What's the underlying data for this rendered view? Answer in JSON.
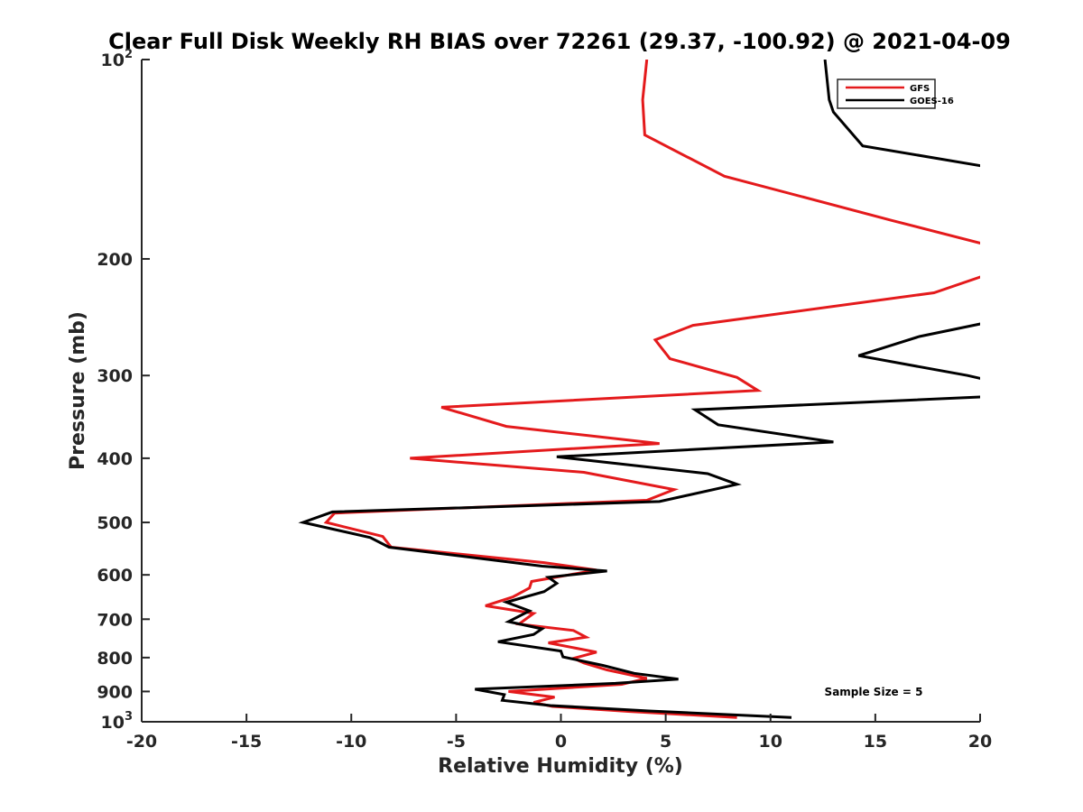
{
  "chart_data": {
    "type": "line",
    "title": "Clear Full Disk Weekly RH BIAS over 72261 (29.37, -100.92) @ 2021-04-09",
    "xlabel": "Relative Humidity (%)",
    "ylabel": "Pressure (mb)",
    "xlim": [
      -20,
      20
    ],
    "ylim": [
      100,
      1000
    ],
    "y_scale": "log",
    "y_reversed": true,
    "x_ticks": [
      "-20",
      "-15",
      "-10",
      "-5",
      "0",
      "5",
      "10",
      "15",
      "20"
    ],
    "y_ticks": [
      {
        "value": 100,
        "base": "10",
        "exp": "2"
      },
      {
        "value": 200,
        "label": "200"
      },
      {
        "value": 300,
        "label": "300"
      },
      {
        "value": 400,
        "label": "400"
      },
      {
        "value": 500,
        "label": "500"
      },
      {
        "value": 600,
        "label": "600"
      },
      {
        "value": 700,
        "label": "700"
      },
      {
        "value": 800,
        "label": "800"
      },
      {
        "value": 900,
        "label": "900"
      },
      {
        "value": 1000,
        "base": "10",
        "exp": "3"
      }
    ],
    "grid": false,
    "legend": {
      "placement": "top-right",
      "entries": [
        "GFS",
        "GOES-16"
      ]
    },
    "annotation": "Sample Size = 5",
    "series": [
      {
        "name": "GFS",
        "color": "#e41a1c",
        "points": [
          [
            4.1,
            100
          ],
          [
            3.9,
            115
          ],
          [
            4.0,
            130
          ],
          [
            7.8,
            150
          ],
          [
            15.8,
            175
          ],
          [
            20.2,
            190
          ],
          [
            20.2,
            212
          ],
          [
            17.8,
            225
          ],
          [
            6.3,
            252
          ],
          [
            4.5,
            265
          ],
          [
            5.2,
            283
          ],
          [
            8.4,
            302
          ],
          [
            9.4,
            316
          ],
          [
            -5.7,
            335
          ],
          [
            -2.6,
            358
          ],
          [
            4.7,
            380
          ],
          [
            -7.2,
            400
          ],
          [
            1.1,
            420
          ],
          [
            5.4,
            446
          ],
          [
            4.1,
            463
          ],
          [
            -10.8,
            484
          ],
          [
            -11.2,
            500
          ],
          [
            -8.5,
            525
          ],
          [
            -8.1,
            545
          ],
          [
            -0.8,
            575
          ],
          [
            1.7,
            590
          ],
          [
            -1.4,
            614
          ],
          [
            -1.5,
            628
          ],
          [
            -2.3,
            648
          ],
          [
            -3.6,
            668
          ],
          [
            -1.3,
            686
          ],
          [
            -2.0,
            712
          ],
          [
            0.6,
            728
          ],
          [
            1.2,
            745
          ],
          [
            -0.6,
            760
          ],
          [
            1.7,
            785
          ],
          [
            0.6,
            802
          ],
          [
            1.1,
            815
          ],
          [
            2.2,
            835
          ],
          [
            4.1,
            860
          ],
          [
            2.9,
            878
          ],
          [
            -2.5,
            900
          ],
          [
            -0.3,
            918
          ],
          [
            -1.3,
            935
          ],
          [
            -0.4,
            948
          ],
          [
            3.3,
            965
          ],
          [
            8.4,
            985
          ]
        ]
      },
      {
        "name": "GOES-16",
        "color": "#000000",
        "points": [
          [
            12.6,
            100
          ],
          [
            12.8,
            115
          ],
          [
            13.0,
            120
          ],
          [
            14.4,
            135
          ],
          [
            20.2,
            145
          ],
          [
            20.2,
            250
          ],
          [
            17.1,
            262
          ],
          [
            14.2,
            280
          ],
          [
            19.4,
            300
          ],
          [
            20.2,
            304
          ],
          [
            20.2,
            323
          ],
          [
            6.4,
            338
          ],
          [
            7.5,
            356
          ],
          [
            13.0,
            378
          ],
          [
            -0.2,
            398
          ],
          [
            7.0,
            422
          ],
          [
            8.4,
            438
          ],
          [
            4.7,
            465
          ],
          [
            -10.9,
            482
          ],
          [
            -12.3,
            500
          ],
          [
            -9.1,
            527
          ],
          [
            -8.2,
            545
          ],
          [
            -0.9,
            582
          ],
          [
            2.2,
            592
          ],
          [
            -0.6,
            605
          ],
          [
            -0.2,
            618
          ],
          [
            -0.8,
            636
          ],
          [
            -2.6,
            660
          ],
          [
            -1.5,
            680
          ],
          [
            -2.5,
            706
          ],
          [
            -0.9,
            724
          ],
          [
            -1.3,
            738
          ],
          [
            -3.0,
            757
          ],
          [
            0.0,
            782
          ],
          [
            0.1,
            798
          ],
          [
            2.0,
            822
          ],
          [
            3.5,
            845
          ],
          [
            5.6,
            862
          ],
          [
            2.6,
            875
          ],
          [
            -4.1,
            893
          ],
          [
            -2.7,
            910
          ],
          [
            -2.8,
            928
          ],
          [
            -0.5,
            945
          ],
          [
            4.2,
            963
          ],
          [
            11.0,
            985
          ]
        ]
      }
    ]
  }
}
